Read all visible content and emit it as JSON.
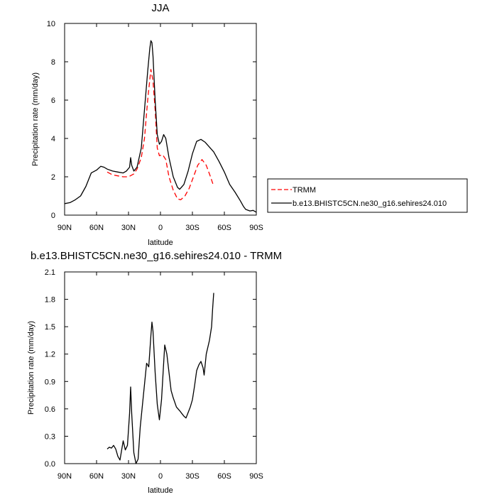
{
  "chart_data": [
    {
      "type": "line",
      "title": "JJA",
      "xlabel": "latitude",
      "ylabel": "Precipitation rate (mm/day)",
      "xlim": [
        90,
        -90
      ],
      "ylim": [
        0,
        10
      ],
      "x_tick_labels": [
        "90N",
        "60N",
        "30N",
        "0",
        "30S",
        "60S",
        "90S"
      ],
      "x_tick_values": [
        90,
        60,
        30,
        0,
        -30,
        -60,
        -90
      ],
      "y_tick_labels": [
        "0",
        "2",
        "4",
        "6",
        "8",
        "10"
      ],
      "y_tick_values": [
        0,
        2,
        4,
        6,
        8,
        10
      ],
      "legend_position": "right",
      "series": [
        {
          "name": "TRMM",
          "color": "#ff0000",
          "dash": "dashed",
          "points": [
            [
              50,
              2.25
            ],
            [
              45,
              2.1
            ],
            [
              40,
              2.05
            ],
            [
              35,
              2.0
            ],
            [
              30,
              2.0
            ],
            [
              25,
              2.15
            ],
            [
              22,
              2.4
            ],
            [
              18,
              3.0
            ],
            [
              15,
              4.0
            ],
            [
              12,
              6.0
            ],
            [
              9,
              7.6
            ],
            [
              7,
              7.0
            ],
            [
              5,
              5.5
            ],
            [
              3,
              3.5
            ],
            [
              1,
              3.1
            ],
            [
              -2,
              3.15
            ],
            [
              -5,
              2.9
            ],
            [
              -8,
              2.0
            ],
            [
              -12,
              1.3
            ],
            [
              -16,
              0.85
            ],
            [
              -19,
              0.8
            ],
            [
              -23,
              1.0
            ],
            [
              -27,
              1.4
            ],
            [
              -31,
              2.0
            ],
            [
              -35,
              2.6
            ],
            [
              -39,
              2.9
            ],
            [
              -43,
              2.6
            ],
            [
              -47,
              2.0
            ],
            [
              -50,
              1.5
            ]
          ]
        },
        {
          "name": "b.e13.BHISTC5CN.ne30_g16.sehires24.010",
          "color": "#000000",
          "dash": "solid",
          "points": [
            [
              90,
              0.6
            ],
            [
              85,
              0.65
            ],
            [
              80,
              0.8
            ],
            [
              75,
              1.0
            ],
            [
              70,
              1.5
            ],
            [
              65,
              2.2
            ],
            [
              60,
              2.35
            ],
            [
              56,
              2.55
            ],
            [
              53,
              2.5
            ],
            [
              50,
              2.4
            ],
            [
              45,
              2.3
            ],
            [
              40,
              2.25
            ],
            [
              35,
              2.2
            ],
            [
              32,
              2.3
            ],
            [
              29,
              2.5
            ],
            [
              28,
              3.0
            ],
            [
              27,
              2.6
            ],
            [
              25,
              2.3
            ],
            [
              22,
              2.5
            ],
            [
              18,
              3.5
            ],
            [
              15,
              5.5
            ],
            [
              12,
              7.5
            ],
            [
              10,
              8.7
            ],
            [
              9,
              9.1
            ],
            [
              8,
              9.0
            ],
            [
              7,
              8.3
            ],
            [
              5,
              6.0
            ],
            [
              3,
              4.2
            ],
            [
              1,
              3.7
            ],
            [
              -1,
              3.85
            ],
            [
              -3,
              4.2
            ],
            [
              -5,
              4.0
            ],
            [
              -8,
              3.0
            ],
            [
              -12,
              2.0
            ],
            [
              -16,
              1.45
            ],
            [
              -18,
              1.35
            ],
            [
              -22,
              1.6
            ],
            [
              -26,
              2.3
            ],
            [
              -30,
              3.2
            ],
            [
              -34,
              3.85
            ],
            [
              -38,
              3.95
            ],
            [
              -42,
              3.8
            ],
            [
              -46,
              3.55
            ],
            [
              -50,
              3.3
            ],
            [
              -55,
              2.8
            ],
            [
              -60,
              2.25
            ],
            [
              -65,
              1.6
            ],
            [
              -70,
              1.2
            ],
            [
              -75,
              0.75
            ],
            [
              -78,
              0.45
            ],
            [
              -80,
              0.3
            ],
            [
              -84,
              0.22
            ],
            [
              -87,
              0.25
            ],
            [
              -90,
              0.15
            ]
          ]
        }
      ]
    },
    {
      "type": "line",
      "title": "b.e13.BHISTC5CN.ne30_g16.sehires24.010 - TRMM",
      "xlabel": "latitude",
      "ylabel": "Precipitation rate (mm/day)",
      "xlim": [
        90,
        -90
      ],
      "ylim": [
        0,
        2.1
      ],
      "x_tick_labels": [
        "90N",
        "60N",
        "30N",
        "0",
        "30S",
        "60S",
        "90S"
      ],
      "x_tick_values": [
        90,
        60,
        30,
        0,
        -30,
        -60,
        -90
      ],
      "y_tick_labels": [
        "0.0",
        "0.3",
        "0.6",
        "0.9",
        "1.2",
        "1.5",
        "1.8",
        "2.1"
      ],
      "y_tick_values": [
        0,
        0.3,
        0.6,
        0.9,
        1.2,
        1.5,
        1.8,
        2.1
      ],
      "series": [
        {
          "color": "#000000",
          "dash": "solid",
          "points": [
            [
              50,
              0.16
            ],
            [
              48,
              0.18
            ],
            [
              46,
              0.17
            ],
            [
              44,
              0.2
            ],
            [
              42,
              0.16
            ],
            [
              40,
              0.08
            ],
            [
              38,
              0.04
            ],
            [
              36,
              0.18
            ],
            [
              35,
              0.25
            ],
            [
              33,
              0.15
            ],
            [
              31,
              0.2
            ],
            [
              29,
              0.55
            ],
            [
              28,
              0.84
            ],
            [
              27,
              0.55
            ],
            [
              25,
              0.12
            ],
            [
              23,
              0.0
            ],
            [
              21,
              0.05
            ],
            [
              19,
              0.4
            ],
            [
              16,
              0.75
            ],
            [
              13,
              1.1
            ],
            [
              11,
              1.06
            ],
            [
              9,
              1.4
            ],
            [
              8,
              1.55
            ],
            [
              7,
              1.45
            ],
            [
              5,
              1.0
            ],
            [
              3,
              0.65
            ],
            [
              1,
              0.48
            ],
            [
              -1,
              0.7
            ],
            [
              -3,
              1.1
            ],
            [
              -4,
              1.3
            ],
            [
              -6,
              1.2
            ],
            [
              -8,
              1.0
            ],
            [
              -10,
              0.8
            ],
            [
              -12,
              0.72
            ],
            [
              -15,
              0.62
            ],
            [
              -18,
              0.58
            ],
            [
              -20,
              0.55
            ],
            [
              -22,
              0.52
            ],
            [
              -24,
              0.5
            ],
            [
              -26,
              0.56
            ],
            [
              -28,
              0.62
            ],
            [
              -30,
              0.7
            ],
            [
              -32,
              0.85
            ],
            [
              -34,
              1.02
            ],
            [
              -36,
              1.08
            ],
            [
              -38,
              1.12
            ],
            [
              -40,
              1.05
            ],
            [
              -41,
              0.97
            ],
            [
              -43,
              1.2
            ],
            [
              -46,
              1.35
            ],
            [
              -48,
              1.5
            ],
            [
              -49,
              1.7
            ],
            [
              -50,
              1.87
            ]
          ]
        }
      ]
    }
  ]
}
